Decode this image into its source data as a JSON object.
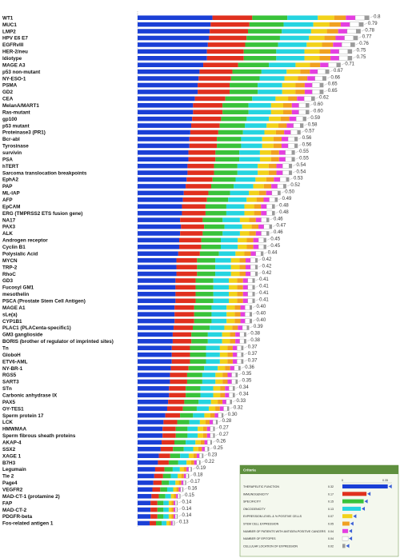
{
  "chart_data": {
    "type": "bar",
    "orientation": "horizontal",
    "stacked": true,
    "xlim": [
      0,
      0.8
    ],
    "categories": [
      "WT1",
      "MUC1",
      "LMP2",
      "HPV E6 E7",
      "EGFRvIII",
      "HER-2/neu",
      "Idiotype",
      "MAGE A3",
      "p53 non-mutant",
      "NY-ESO-1",
      "PSMA",
      "GD2",
      "CEA",
      "MelanA/MART1",
      "Ras-mutant",
      "gp100",
      "p53 mutant",
      "Proteinase3 (PR1)",
      "Bcr-abl",
      "Tyrosinase",
      "survivin",
      "PSA",
      "hTERT",
      "Sarcoma translocation breakpoints",
      "EphA2",
      "PAP",
      "ML-IAP",
      "AFP",
      "EpCAM",
      "ERG (TMPRSS2 ETS fusion gene)",
      "NA17",
      "PAX3",
      "ALK",
      "Androgen receptor",
      "Cyclin B1",
      "Polysialic Acid",
      "MYCN",
      "TRP-2",
      "RhoC",
      "GD3",
      "Fucosyl GM1",
      "mesothelin",
      "PSCA (Prostate Stem Cell Antigen)",
      "MAGE A1",
      "sLe(a)",
      "CYP1B1",
      "PLAC1 (PLACenta-specific1)",
      "GM3 ganglioside",
      "BORIS (brother of regulator of imprinted sites)",
      "Tn",
      "GloboH",
      "ETV6-AML",
      "NY-BR-1",
      "RGS5",
      "SART3",
      "STn",
      "Carbonic anhydrase IX",
      "PAX5",
      "OY-TES1",
      "Sperm protein 17",
      "LCK",
      "HMWMAA",
      "Sperm fibrous sheath proteins",
      "AKAP-4",
      "SSX2",
      "XAGE 1",
      "B7H3",
      "Legumain",
      "Tie 2",
      "Page4",
      "VEGFR2",
      "MAD-CT-1 (protamine 2)",
      "FAP",
      "MAD-CT-2",
      "PDGFR-beta",
      "Fos-related antigen 1"
    ],
    "totals": [
      0.81,
      0.79,
      0.78,
      0.77,
      0.76,
      0.75,
      0.75,
      0.71,
      0.67,
      0.66,
      0.65,
      0.65,
      0.62,
      0.6,
      0.6,
      0.59,
      0.58,
      0.57,
      0.56,
      0.56,
      0.55,
      0.55,
      0.54,
      0.54,
      0.53,
      0.52,
      0.5,
      0.49,
      0.48,
      0.48,
      0.46,
      0.47,
      0.46,
      0.45,
      0.45,
      0.44,
      0.42,
      0.42,
      0.42,
      0.41,
      0.41,
      0.41,
      0.41,
      0.4,
      0.4,
      0.4,
      0.39,
      0.38,
      0.38,
      0.37,
      0.37,
      0.37,
      0.36,
      0.35,
      0.35,
      0.34,
      0.34,
      0.33,
      0.32,
      0.3,
      0.28,
      0.27,
      0.27,
      0.26,
      0.25,
      0.23,
      0.22,
      0.19,
      0.18,
      0.17,
      0.16,
      0.15,
      0.14,
      0.14,
      0.14,
      0.13
    ],
    "segment_weights": [
      0.32,
      0.17,
      0.15,
      0.13,
      0.07,
      0.05,
      0.04,
      0.04,
      0.02
    ],
    "colors": [
      "#1a3fd6",
      "#e0301e",
      "#39c23a",
      "#25d4e0",
      "#f2d21a",
      "#f0a020",
      "#e43fe0",
      "#ffffff",
      "#9a9a9a"
    ],
    "inset": {
      "title": "Criteria",
      "axis_ticks": [
        "0",
        "0.35"
      ],
      "rows": [
        {
          "label": "THERAPEUTIC FUNCTION",
          "value": "0.32"
        },
        {
          "label": "IMMUNOGENICITY",
          "value": "0.17"
        },
        {
          "label": "SPECIFICITY",
          "value": "0.15"
        },
        {
          "label": "ONCOGENICITY",
          "value": "0.13"
        },
        {
          "label": "EXPRESSION LEVEL & % POSITIVE CELLS",
          "value": "0.07"
        },
        {
          "label": "STEM CELL EXPRESSION",
          "value": "0.05"
        },
        {
          "label": "NUMBER OF PATIENTS WITH ANTIGEN-POSITIVE CANCERS",
          "value": "0.04"
        },
        {
          "label": "NUMBER OF EPITOPES",
          "value": "0.04"
        },
        {
          "label": "CELLULAR LOCATION OF EXPRESSION",
          "value": "0.02"
        }
      ],
      "bar_values": [
        0.32,
        0.17,
        0.15,
        0.13,
        0.07,
        0.05,
        0.04,
        0.04,
        0.02
      ],
      "xlim": [
        0,
        0.35
      ]
    },
    "value_labels": [
      "0.8",
      "0.79",
      "0.78",
      "0.77",
      "0.76",
      "0.75",
      "0.75",
      "0.71",
      "0.67",
      "0.66",
      "0.65",
      "0.65",
      "0.62",
      "0.60",
      "0.60",
      "0.59",
      "0.58",
      "0.57",
      "0.56",
      "0.56",
      "0.55",
      "0.55",
      "0.54",
      "0.54",
      "0.53",
      "0.52",
      "0.50",
      "0.49",
      "0.48",
      "0.48",
      "0.46",
      "0.47",
      "0.46",
      "0.45",
      "0.45",
      "0.44",
      "0.42",
      "0.42",
      "0.42",
      "0.41",
      "0.41",
      "0.41",
      "0.41",
      "0.40",
      "0.40",
      "0.40",
      "0.39",
      "0.38",
      "0.38",
      "0.37",
      "0.37",
      "0.37",
      "0.36",
      "0.35",
      "0.35",
      "0.34",
      "0.34",
      "0.33",
      "0.32",
      "0.30",
      "0.28",
      "0.27",
      "0.27",
      "0.26",
      "0.25",
      "0.23",
      "0.22",
      "0.19",
      "0.18",
      "0.17",
      "0.16",
      "0.15",
      "0.14",
      "0.14",
      "0.14",
      "0.13"
    ]
  }
}
